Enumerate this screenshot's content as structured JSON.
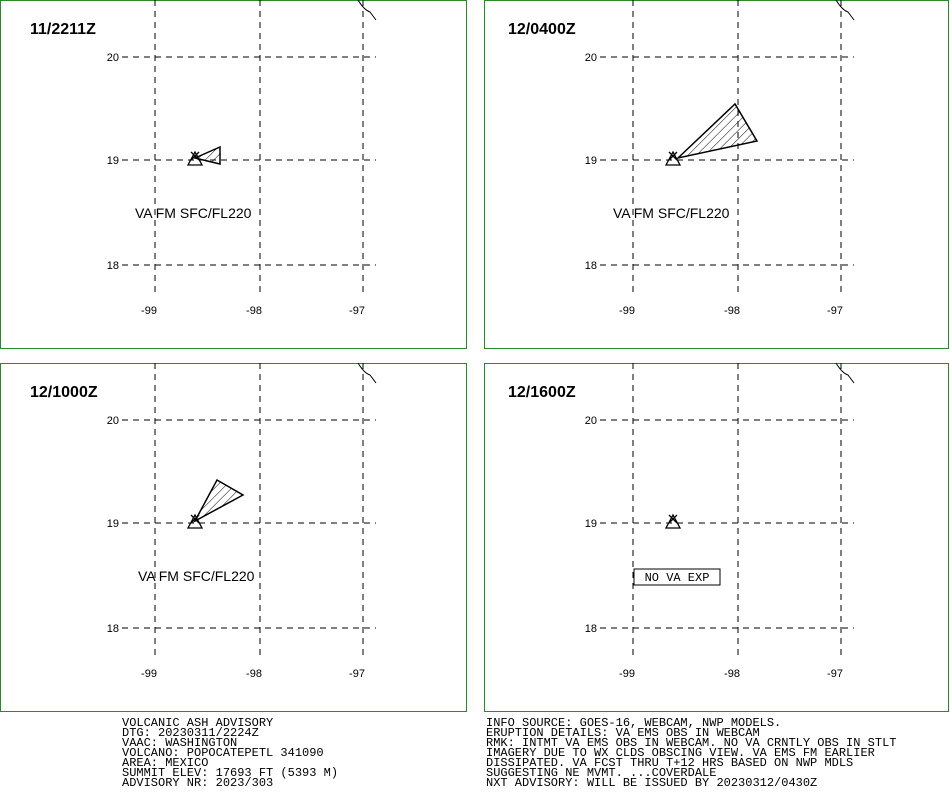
{
  "panels": [
    {
      "title": "11/2211Z",
      "label": "VA FM SFC/FL220"
    },
    {
      "title": "12/0400Z",
      "label": "VA FM SFC/FL220"
    },
    {
      "title": "12/1000Z",
      "label": "VA FM SFC/FL220"
    },
    {
      "title": "12/1600Z",
      "label": "NO VA EXP"
    }
  ],
  "lat_ticks": [
    "20",
    "19",
    "18"
  ],
  "lon_ticks": [
    "-99",
    "-98",
    "-97"
  ],
  "advisory_left": [
    "VOLCANIC ASH ADVISORY",
    "DTG: 20230311/2224Z",
    "VAAC: WASHINGTON",
    "VOLCANO: POPOCATEPETL 341090",
    "AREA: MEXICO",
    "SUMMIT ELEV: 17693 FT (5393 M)",
    "ADVISORY NR: 2023/303"
  ],
  "advisory_right": [
    "INFO SOURCE: GOES-16, WEBCAM, NWP MODELS.",
    "ERUPTION DETAILS: VA EMS OBS IN WEBCAM",
    "RMK: INTMT VA EMS OBS IN WEBCAM. NO VA CRNTLY OBS IN STLT",
    "IMAGERY DUE TO WX CLDS OBSCING VIEW. VA EMS FM EARLIER",
    "DISSIPATED. VA FCST THRU T+12 HRS BASED ON NWP MDLS",
    "SUGGESTING NE MVMT. ...COVERDALE",
    "NXT ADVISORY: WILL BE ISSUED BY 20230312/0430Z"
  ]
}
